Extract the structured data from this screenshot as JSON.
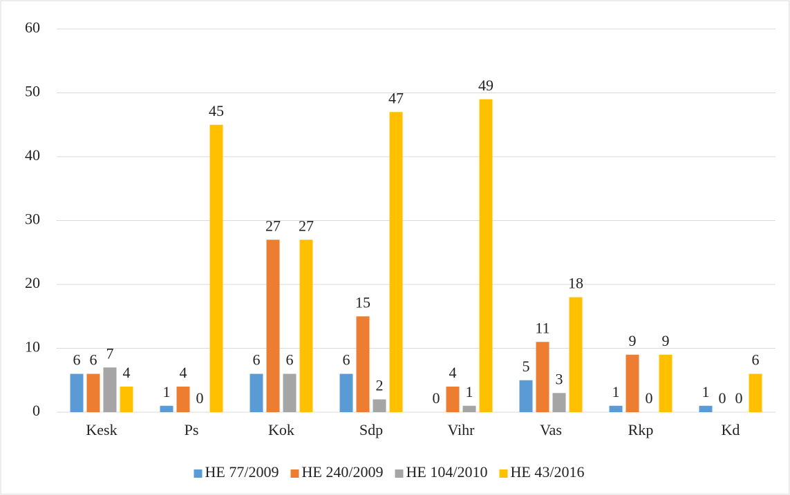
{
  "chart_data": {
    "type": "bar",
    "categories": [
      "Kesk",
      "Ps",
      "Kok",
      "Sdp",
      "Vihr",
      "Vas",
      "Rkp",
      "Kd"
    ],
    "series": [
      {
        "name": "HE 77/2009",
        "color": "#5b9bd5",
        "values": [
          6,
          1,
          6,
          6,
          0,
          5,
          1,
          1
        ]
      },
      {
        "name": "HE 240/2009",
        "color": "#ed7d31",
        "values": [
          6,
          4,
          27,
          15,
          4,
          11,
          9,
          0
        ]
      },
      {
        "name": "HE 104/2010",
        "color": "#a5a5a5",
        "values": [
          7,
          0,
          6,
          2,
          1,
          3,
          0,
          0
        ]
      },
      {
        "name": "HE 43/2016",
        "color": "#ffc000",
        "values": [
          4,
          45,
          27,
          47,
          49,
          18,
          9,
          6
        ]
      }
    ],
    "ylim": [
      0,
      60
    ],
    "yticks": [
      0,
      10,
      20,
      30,
      40,
      50,
      60
    ],
    "grid": true,
    "legend": "bottom"
  }
}
